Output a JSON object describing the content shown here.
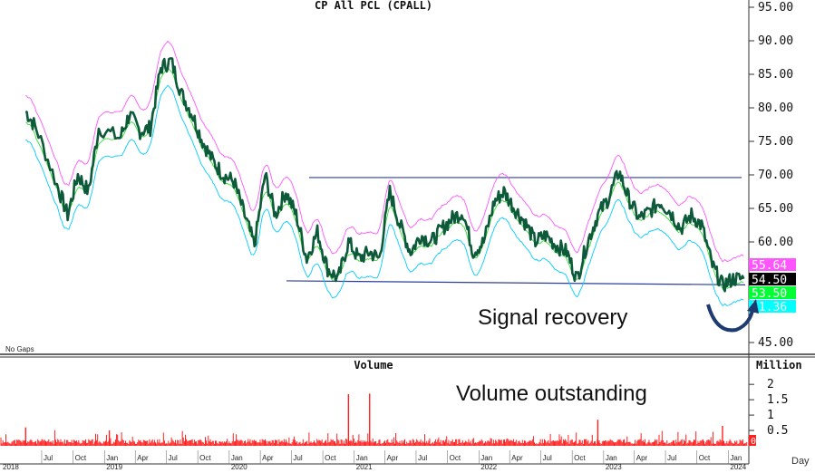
{
  "chart_data": {
    "type": "line",
    "title": "CP All PCL (CPALL)",
    "panel_label_bottom_left": "No Gaps",
    "price_axis": {
      "ticks": [
        "95.00",
        "90.00",
        "85.00",
        "80.00",
        "75.00",
        "70.00",
        "65.00",
        "60.00",
        "45.00"
      ],
      "ylim": [
        43.5,
        96.0
      ]
    },
    "badges": [
      {
        "label": "55.64",
        "value": 55.64,
        "color": "#ff55ff",
        "text_color": "#ffffff"
      },
      {
        "label": "54.50",
        "value": 54.5,
        "color": "#000000",
        "text_color": "#ffffff"
      },
      {
        "label": "53.50",
        "value": 53.5,
        "color": "#00ff33",
        "text_color": "#ffffff"
      },
      {
        "label": "51.36",
        "value": 51.36,
        "color": "#00ffff",
        "text_color": "#ffffff"
      }
    ],
    "x_axis": {
      "months": [
        "Jul",
        "Oct",
        "Jan",
        "Apr",
        "Jul",
        "Oct",
        "Jan",
        "Apr",
        "Jul",
        "Oct",
        "Jan",
        "Apr",
        "Jul",
        "Oct",
        "Jan",
        "Apr",
        "Jul",
        "Oct",
        "Jan",
        "Apr",
        "Jul",
        "Oct",
        "Jan"
      ],
      "years": [
        "2018",
        "2019",
        "2020",
        "2021",
        "2022",
        "2023",
        "2024"
      ],
      "unit_label": "Day"
    },
    "series": [
      {
        "name": "",
        "color": "#0d5a3a",
        "x": [
          "2018-05",
          "2018-06",
          "2018-08",
          "2018-09",
          "2018-10",
          "2018-11",
          "2018-12",
          "2019-02",
          "2019-03",
          "2019-04",
          "2019-05",
          "2019-06",
          "2019-07",
          "2019-08",
          "2019-09",
          "2019-10",
          "2019-11",
          "2019-12",
          "2020-01",
          "2020-02",
          "2020-03",
          "2020-04",
          "2020-05",
          "2020-06",
          "2020-07",
          "2020-08",
          "2020-09",
          "2020-10",
          "2020-11",
          "2020-12",
          "2021-01",
          "2021-02",
          "2021-03",
          "2021-04",
          "2021-05",
          "2021-06",
          "2021-07",
          "2021-08",
          "2021-09",
          "2021-10",
          "2021-11",
          "2021-12",
          "2022-01",
          "2022-02",
          "2022-03",
          "2022-04",
          "2022-05",
          "2022-06",
          "2022-07",
          "2022-08",
          "2022-09",
          "2022-10",
          "2022-11",
          "2022-12",
          "2023-01",
          "2023-02",
          "2023-03",
          "2023-04",
          "2023-05",
          "2023-06",
          "2023-07",
          "2023-08",
          "2023-09",
          "2023-10",
          "2023-11",
          "2023-12",
          "2024-01",
          "2024-02"
        ],
        "values": [
          79.5,
          77.0,
          68.5,
          64.0,
          70.0,
          67.5,
          77.0,
          75.5,
          79.0,
          76.5,
          77.0,
          86.0,
          87.0,
          82.0,
          79.0,
          75.0,
          72.0,
          70.0,
          69.0,
          64.0,
          59.5,
          70.0,
          64.0,
          67.5,
          64.0,
          57.5,
          61.5,
          56.0,
          54.5,
          60.0,
          57.5,
          58.5,
          57.5,
          67.5,
          62.5,
          58.5,
          61.0,
          60.0,
          62.0,
          63.5,
          64.5,
          58.5,
          60.0,
          66.0,
          67.5,
          65.0,
          63.0,
          60.0,
          61.0,
          59.5,
          58.5,
          54.5,
          60.0,
          64.0,
          66.5,
          70.5,
          66.5,
          63.5,
          64.5,
          66.0,
          64.5,
          62.0,
          64.0,
          62.5,
          56.5,
          53.5,
          54.5,
          54.5
        ]
      }
    ],
    "envelope": [
      {
        "name": "",
        "color": "#ff55ff"
      },
      {
        "name": "",
        "color": "#00ccff"
      },
      {
        "name": "",
        "color": "#33dd33"
      }
    ],
    "channel_lines": {
      "upper_value": 69.6,
      "lower_value": 53.9,
      "color": "#2c3e9e"
    },
    "volume": {
      "title": "Volume",
      "unit": "Million",
      "ticks": [
        "2",
        "1.5",
        "1",
        "0.5"
      ],
      "ylim": [
        0,
        2.3
      ],
      "bar_color": "#ff2020",
      "last_label": "0",
      "spikes": [
        {
          "x": "2020-12",
          "value": 1.68
        },
        {
          "x": "2021-02",
          "value": 1.7
        },
        {
          "x": "2018-05",
          "value": 0.6
        },
        {
          "x": "2019-01",
          "value": 0.5
        },
        {
          "x": "2022-12",
          "value": 0.85
        },
        {
          "x": "2023-12",
          "value": 0.65
        }
      ]
    },
    "annotations": [
      {
        "text": "Signal recovery"
      },
      {
        "text": "Volume outstanding"
      }
    ]
  }
}
